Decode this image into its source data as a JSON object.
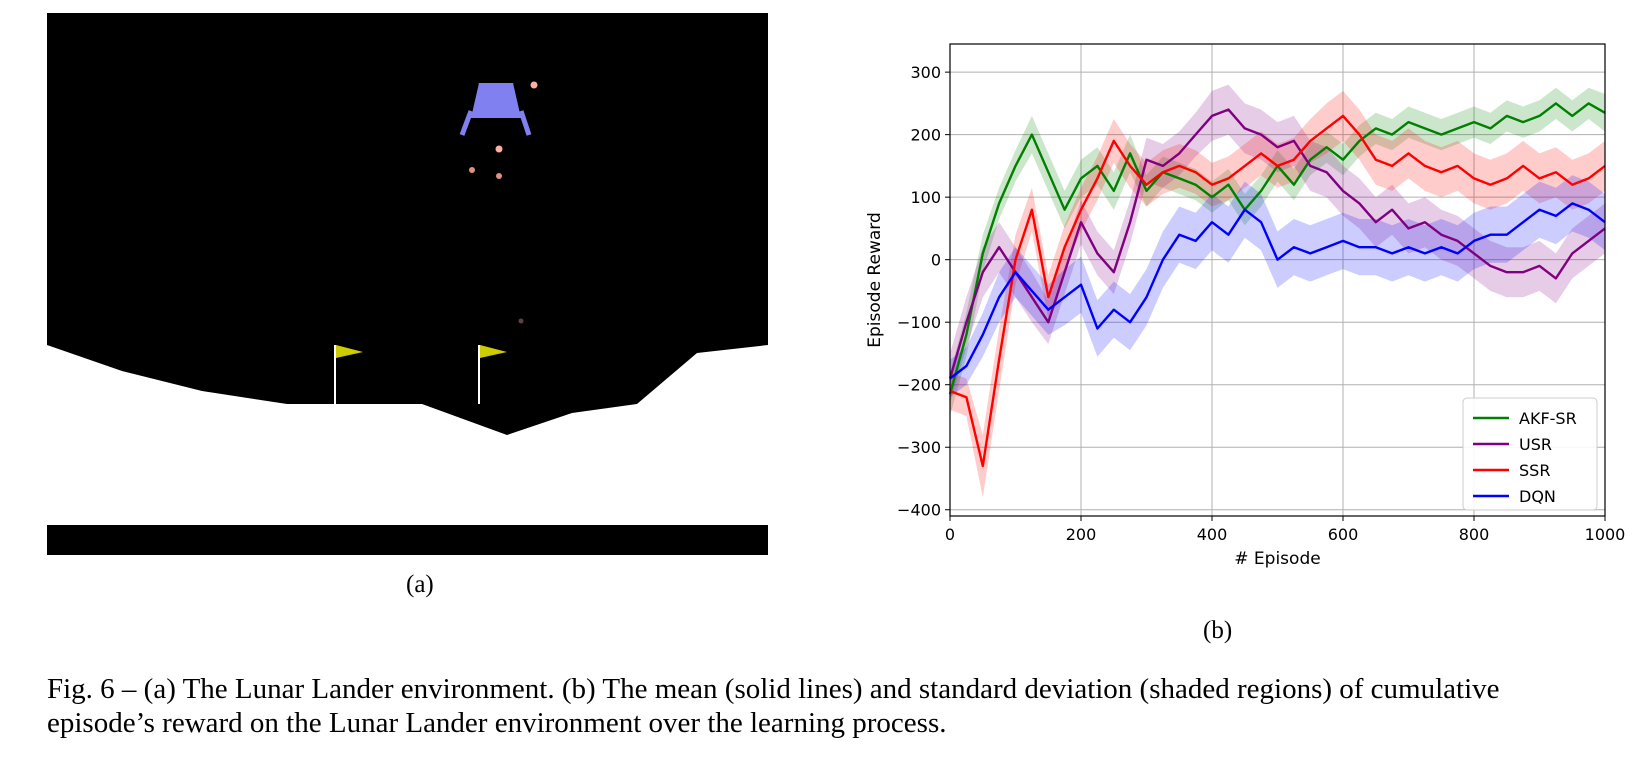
{
  "panel_a": {
    "label": "(a)"
  },
  "panel_b": {
    "label": "(b)"
  },
  "caption": "Fig. 6 – (a) The Lunar Lander environment.  (b) The mean (solid lines) and standard deviation (shaded regions) of cumulative episode’s reward on the Lunar Lander environment over the learning process.",
  "colors": {
    "AKF-SR": "#008000",
    "USR": "#800080",
    "SSR": "#ff0000",
    "DQN": "#0000ff",
    "lander": "#8080f0",
    "flag": "#cccc00"
  },
  "chart_data": {
    "type": "line",
    "title": "",
    "xlabel": "# Episode",
    "ylabel": "Episode Reward",
    "xlim": [
      0,
      1000
    ],
    "ylim": [
      -410,
      345
    ],
    "xticks": [
      0,
      200,
      400,
      600,
      800,
      1000
    ],
    "yticks": [
      -400,
      -300,
      -200,
      -100,
      0,
      100,
      200,
      300
    ],
    "ytick_labels": [
      "−400",
      "−300",
      "−200",
      "−100",
      "0",
      "100",
      "200",
      "300"
    ],
    "grid": true,
    "legend_position": "lower-right",
    "x": [
      0,
      25,
      50,
      75,
      100,
      125,
      150,
      175,
      200,
      225,
      250,
      275,
      300,
      325,
      350,
      375,
      400,
      425,
      450,
      475,
      500,
      525,
      550,
      575,
      600,
      625,
      650,
      675,
      700,
      725,
      750,
      775,
      800,
      825,
      850,
      875,
      900,
      925,
      950,
      975,
      1000
    ],
    "series": [
      {
        "name": "AKF-SR",
        "values": [
          -215,
          -120,
          10,
          90,
          150,
          200,
          140,
          80,
          130,
          150,
          110,
          170,
          110,
          140,
          130,
          120,
          100,
          120,
          80,
          110,
          150,
          120,
          160,
          180,
          160,
          190,
          210,
          200,
          220,
          210,
          200,
          210,
          220,
          210,
          230,
          220,
          230,
          250,
          230,
          250,
          235
        ],
        "std": [
          35,
          35,
          30,
          25,
          25,
          30,
          30,
          30,
          30,
          30,
          30,
          30,
          25,
          25,
          25,
          25,
          25,
          25,
          25,
          25,
          25,
          25,
          25,
          25,
          25,
          25,
          25,
          25,
          25,
          25,
          25,
          25,
          25,
          25,
          25,
          25,
          25,
          25,
          25,
          25,
          30
        ]
      },
      {
        "name": "USR",
        "values": [
          -190,
          -100,
          -20,
          20,
          -20,
          -60,
          -100,
          -20,
          60,
          10,
          -20,
          60,
          160,
          150,
          170,
          200,
          230,
          240,
          210,
          200,
          180,
          190,
          150,
          140,
          110,
          90,
          60,
          80,
          50,
          60,
          40,
          30,
          10,
          -10,
          -20,
          -20,
          -10,
          -30,
          10,
          30,
          50
        ],
        "std": [
          40,
          40,
          40,
          40,
          40,
          40,
          35,
          35,
          35,
          35,
          35,
          35,
          35,
          35,
          35,
          35,
          40,
          40,
          40,
          40,
          40,
          40,
          40,
          40,
          40,
          40,
          40,
          40,
          40,
          40,
          40,
          40,
          40,
          40,
          40,
          40,
          40,
          40,
          40,
          40,
          40
        ]
      },
      {
        "name": "SSR",
        "values": [
          -210,
          -220,
          -330,
          -160,
          0,
          80,
          -60,
          20,
          80,
          130,
          190,
          150,
          120,
          140,
          150,
          140,
          120,
          130,
          150,
          170,
          150,
          160,
          190,
          210,
          230,
          200,
          160,
          150,
          170,
          150,
          140,
          150,
          130,
          120,
          130,
          150,
          130,
          140,
          120,
          130,
          150
        ],
        "std": [
          30,
          30,
          50,
          50,
          40,
          35,
          35,
          35,
          35,
          35,
          35,
          35,
          35,
          35,
          35,
          35,
          35,
          35,
          35,
          35,
          35,
          35,
          35,
          40,
          40,
          40,
          40,
          40,
          40,
          40,
          40,
          40,
          40,
          40,
          40,
          40,
          40,
          40,
          40,
          40,
          40
        ]
      },
      {
        "name": "DQN",
        "values": [
          -190,
          -170,
          -120,
          -60,
          -20,
          -50,
          -80,
          -60,
          -40,
          -110,
          -80,
          -100,
          -60,
          0,
          40,
          30,
          60,
          40,
          80,
          60,
          0,
          20,
          10,
          20,
          30,
          20,
          20,
          10,
          20,
          10,
          20,
          10,
          30,
          40,
          40,
          60,
          80,
          70,
          90,
          80,
          60
        ],
        "std": [
          30,
          30,
          35,
          40,
          40,
          40,
          40,
          45,
          45,
          45,
          45,
          45,
          45,
          45,
          45,
          45,
          45,
          45,
          45,
          45,
          45,
          45,
          45,
          45,
          45,
          45,
          45,
          45,
          45,
          45,
          45,
          45,
          45,
          45,
          45,
          45,
          45,
          45,
          45,
          45,
          45
        ]
      }
    ]
  }
}
